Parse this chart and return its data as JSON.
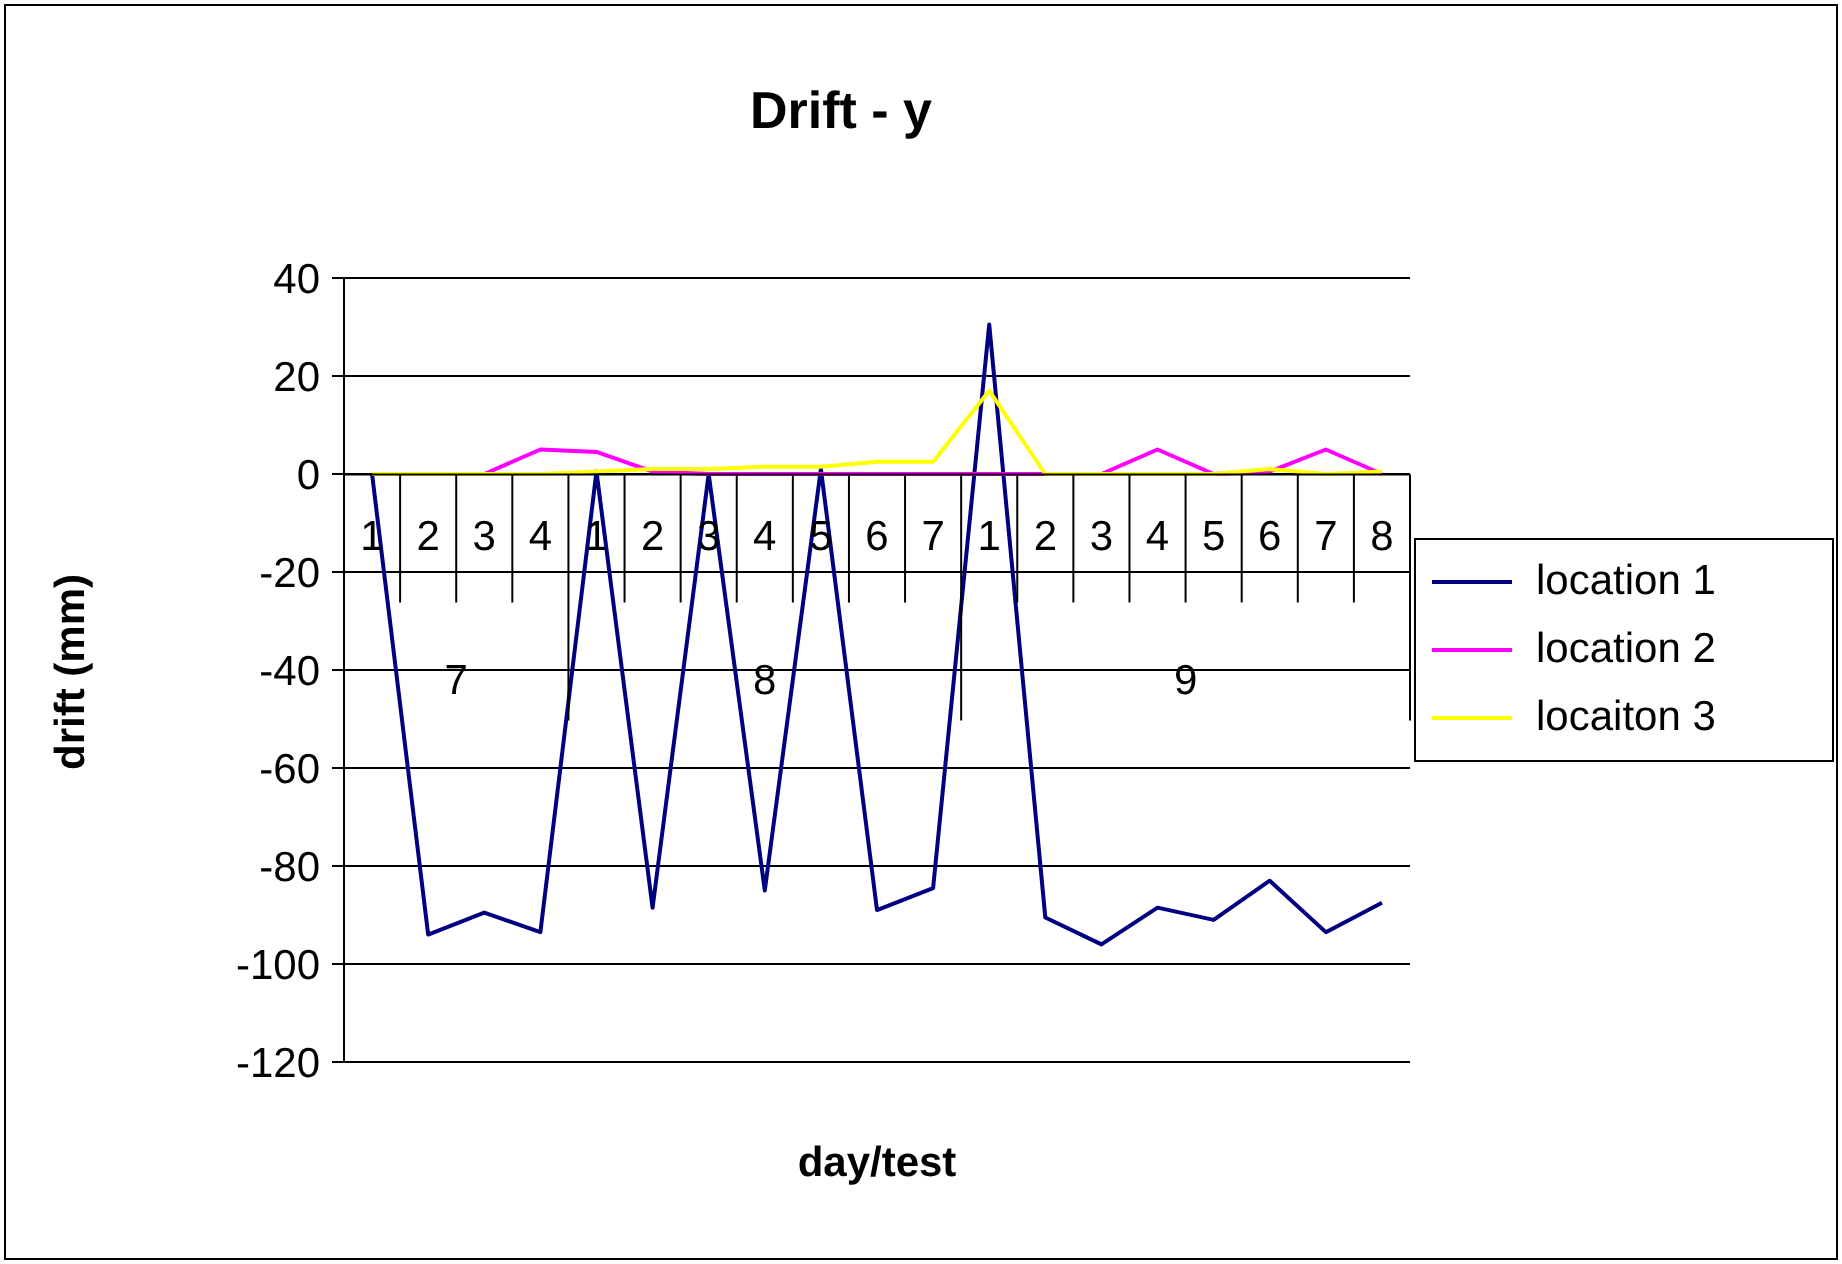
{
  "chart_data": {
    "type": "line",
    "title": "Drift - y",
    "xlabel": "day/test",
    "ylabel": "drift (mm)",
    "categories": [
      "1",
      "2",
      "3",
      "4",
      "1",
      "2",
      "3",
      "4",
      "5",
      "6",
      "7",
      "1",
      "2",
      "3",
      "4",
      "5",
      "6",
      "7",
      "8"
    ],
    "annotations": [
      "7",
      "8",
      "9"
    ],
    "series": [
      {
        "name": "location 1",
        "color": "#000080",
        "values": [
          0,
          -94,
          -89.5,
          -93.5,
          0.5,
          -88.5,
          0,
          -85,
          1,
          -89,
          -84.5,
          30.5,
          -90.5,
          -96,
          -88.5,
          -91,
          -83,
          -93.5,
          -87.5
        ]
      },
      {
        "name": "location 2",
        "color": "#ff00ff",
        "values": [
          0,
          0,
          0,
          5,
          4.5,
          0.5,
          0,
          0,
          0,
          0,
          0,
          0,
          0,
          0,
          5,
          0,
          0.5,
          5,
          0
        ]
      },
      {
        "name": "locaiton 3",
        "color": "#ffff00",
        "values": [
          0,
          0,
          0,
          0,
          0.5,
          1,
          1,
          1.5,
          1.5,
          2.5,
          2.5,
          17,
          0,
          0,
          0,
          0,
          1,
          0,
          0.5
        ]
      }
    ],
    "ylim": [
      -120,
      40
    ],
    "yticks": [
      -120,
      -100,
      -80,
      -60,
      -40,
      -20,
      0,
      20,
      40
    ],
    "grid": "y",
    "legend": "right",
    "marker": "none",
    "line_style": "solid"
  }
}
